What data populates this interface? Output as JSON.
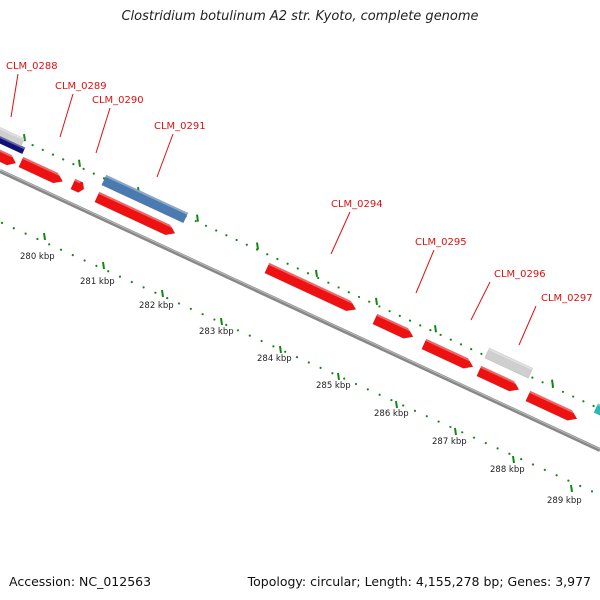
{
  "title": "Clostridium botulinum A2 str. Kyoto, complete genome",
  "footer": {
    "accession": "Accession: NC_012563",
    "summary": "Topology: circular; Length: 4,155,278 bp; Genes: 3,977"
  },
  "colors": {
    "cds": "#ee1111",
    "cds_highlight": "#4a7ab0",
    "gray_feature": "#cfcfcf",
    "navy_feature": "#10107a",
    "teal_feature": "#2bb8b8",
    "backbone": "#888888",
    "tick": "#118811",
    "label": "#dd1111"
  },
  "gene_labels": [
    "CLM_0288",
    "CLM_0289",
    "CLM_0290",
    "CLM_0291",
    "CLM_0294",
    "CLM_0295",
    "CLM_0296",
    "CLM_0297"
  ],
  "kbp_labels": [
    "280 kbp",
    "281 kbp",
    "282 kbp",
    "283 kbp",
    "284 kbp",
    "285 kbp",
    "286 kbp",
    "287 kbp",
    "288 kbp",
    "289 kbp"
  ],
  "feature_colors": [
    "navy",
    "gray",
    "cds",
    "cds",
    "cds",
    "highlight",
    "cds",
    "cds",
    "cds",
    "cds",
    "gray",
    "cds",
    "cds",
    "teal"
  ]
}
